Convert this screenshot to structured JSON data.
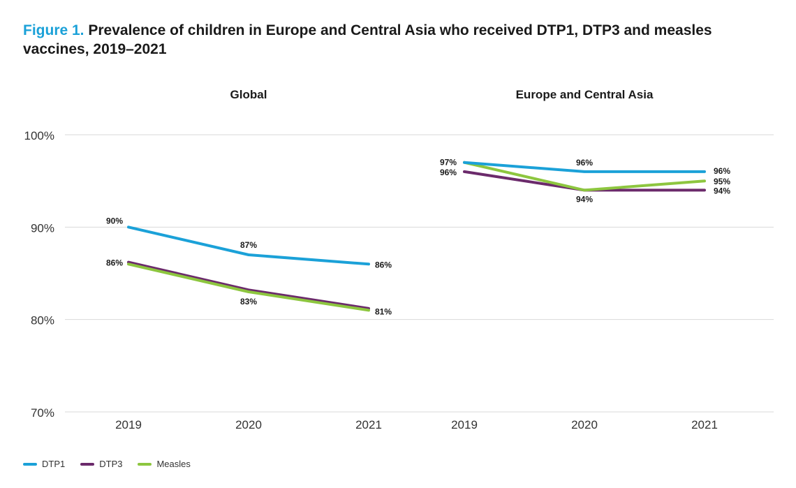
{
  "title": {
    "figure_label": "Figure 1.",
    "text": "Prevalence of children in Europe and Central Asia who received DTP1, DTP3 and measles vaccines, 2019–2021"
  },
  "colors": {
    "DTP1": "#1ba1d8",
    "DTP3": "#6b2a6b",
    "Measles": "#8dc63f",
    "grid": "#d9d9d9"
  },
  "legend": [
    {
      "name": "DTP1",
      "color": "#1ba1d8"
    },
    {
      "name": "DTP3",
      "color": "#6b2a6b"
    },
    {
      "name": "Measles",
      "color": "#8dc63f"
    }
  ],
  "chart_data": [
    {
      "type": "line",
      "title": "Global",
      "x": [
        "2019",
        "2020",
        "2021"
      ],
      "ylim": [
        70,
        100
      ],
      "yticks": [
        "70%",
        "80%",
        "90%",
        "100%"
      ],
      "grid": true,
      "legend_position": "bottom-left",
      "series": [
        {
          "name": "DTP1",
          "values": [
            90,
            87,
            86
          ],
          "labels": [
            "90%",
            "87%",
            "86%"
          ]
        },
        {
          "name": "DTP3",
          "values": [
            86.2,
            83.2,
            81.2
          ],
          "labels": [
            "",
            "",
            ""
          ]
        },
        {
          "name": "Measles",
          "values": [
            86,
            83,
            81
          ],
          "labels": [
            "86%",
            "83%",
            "81%"
          ]
        }
      ]
    },
    {
      "type": "line",
      "title": "Europe and Central Asia",
      "x": [
        "2019",
        "2020",
        "2021"
      ],
      "ylim": [
        70,
        100
      ],
      "grid": true,
      "series": [
        {
          "name": "DTP1",
          "values": [
            97,
            96,
            96
          ],
          "labels": [
            "97%",
            "96%",
            "96%"
          ]
        },
        {
          "name": "DTP3",
          "values": [
            96,
            94,
            94
          ],
          "labels": [
            "96%",
            "94%",
            "94%"
          ]
        },
        {
          "name": "Measles",
          "values": [
            97,
            94,
            95
          ],
          "labels": [
            "",
            "",
            "95%"
          ]
        }
      ]
    }
  ]
}
